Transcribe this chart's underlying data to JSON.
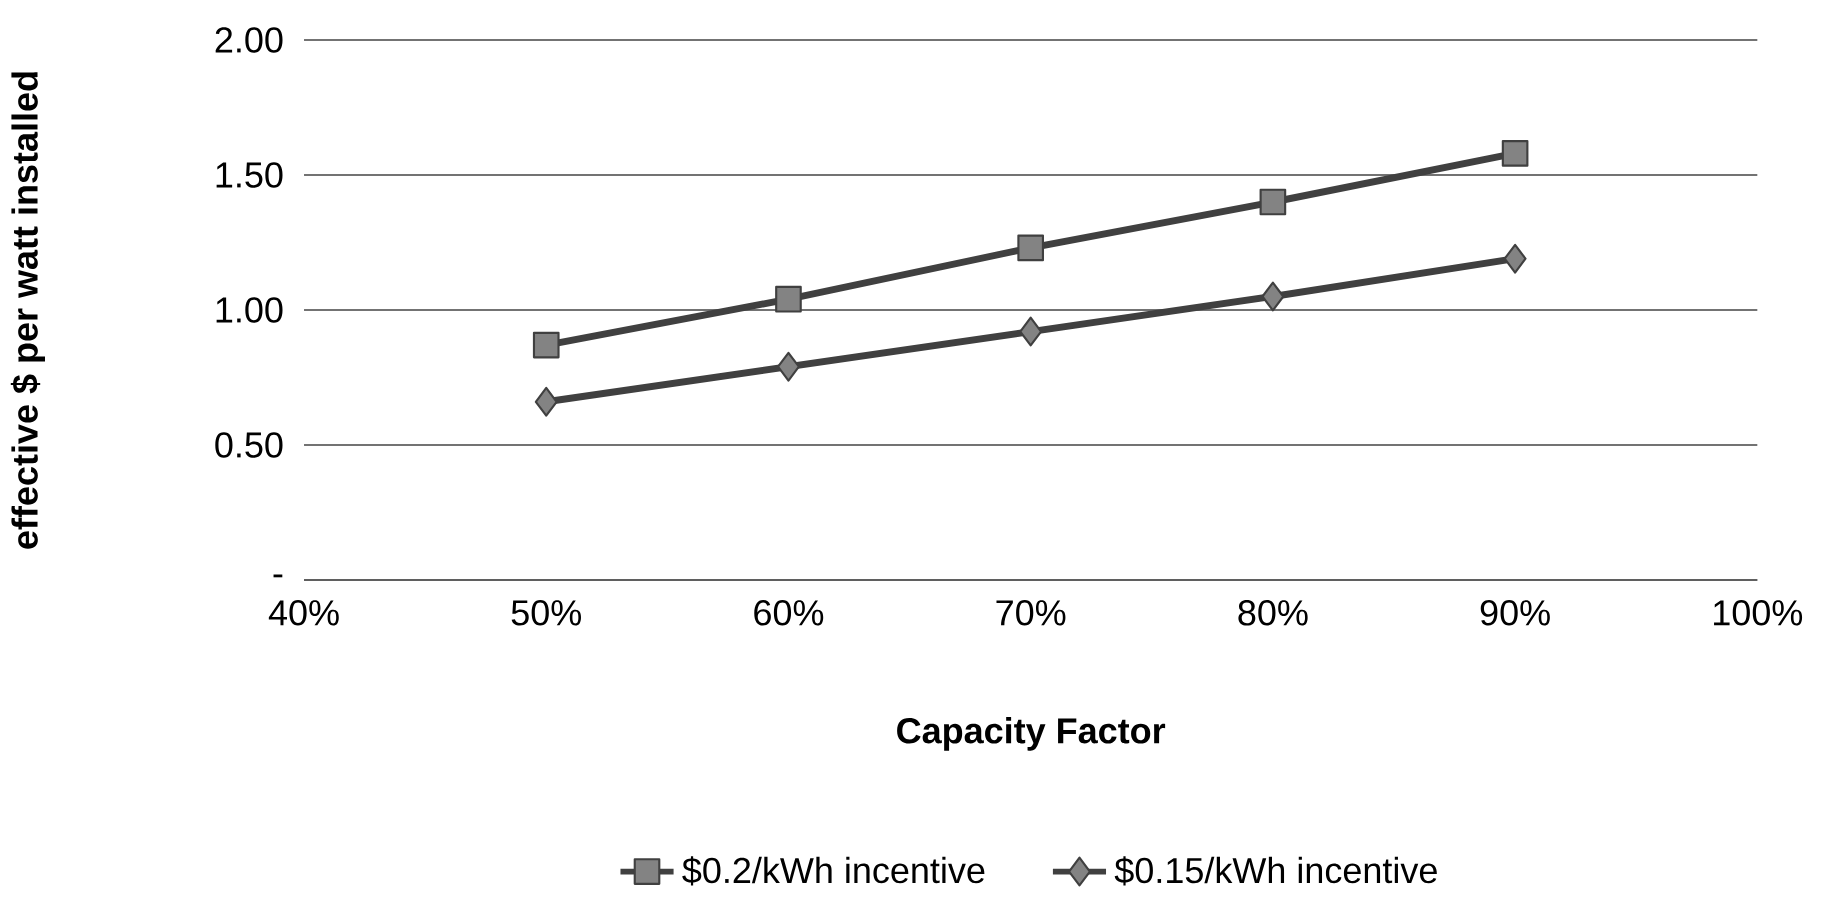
{
  "chart_data": {
    "type": "line",
    "xlabel": "Capacity Factor",
    "ylabel": "effective $ per watt installed",
    "x": [
      50,
      60,
      70,
      80,
      90
    ],
    "series": [
      {
        "name": "$0.2/kWh incentive",
        "color": "#404040",
        "marker": "square",
        "values": [
          0.87,
          1.04,
          1.23,
          1.4,
          1.58
        ]
      },
      {
        "name": "$0.15/kWh incentive",
        "color": "#404040",
        "marker": "diamond",
        "values": [
          0.66,
          0.79,
          0.92,
          1.05,
          1.19
        ]
      }
    ],
    "xlim": [
      40,
      100
    ],
    "xticks": [
      {
        "value": 40,
        "label": "40%"
      },
      {
        "value": 50,
        "label": "50%"
      },
      {
        "value": 60,
        "label": "60%"
      },
      {
        "value": 70,
        "label": "70%"
      },
      {
        "value": 80,
        "label": "80%"
      },
      {
        "value": 90,
        "label": "90%"
      },
      {
        "value": 100,
        "label": "100%"
      }
    ],
    "ylim": [
      0,
      2
    ],
    "yticks": [
      {
        "value": 0,
        "label": "-"
      },
      {
        "value": 0.5,
        "label": "0.50"
      },
      {
        "value": 1,
        "label": "1.00"
      },
      {
        "value": 1.5,
        "label": "1.50"
      },
      {
        "value": 2,
        "label": "2.00"
      }
    ],
    "grid": "y",
    "legend": "bottom",
    "line_style": "solid"
  }
}
